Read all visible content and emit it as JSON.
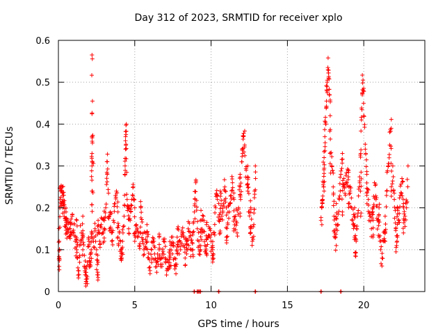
{
  "chart_data": {
    "type": "scatter",
    "title": "Day 312 of 2023, SRMTID for receiver xplo",
    "xlabel": "GPS time / hours",
    "ylabel": "SRMTID / TECUs",
    "xlim": [
      0,
      24
    ],
    "ylim": [
      0,
      0.6
    ],
    "x_ticks": [
      0,
      5,
      10,
      15,
      20
    ],
    "y_ticks": [
      0,
      0.1,
      0.2,
      0.3,
      0.4,
      0.5,
      0.6
    ],
    "x_tick_labels": [
      "0",
      "5",
      "10",
      "15",
      "20"
    ],
    "y_tick_labels": [
      "0",
      "0.1",
      "0.2",
      "0.3",
      "0.4",
      "0.5",
      "0.6"
    ],
    "grid": true,
    "marker": "+",
    "marker_color": "#ff0000",
    "series": [
      {
        "name": "SRMTID",
        "points": [
          [
            0.05,
            0.06
          ],
          [
            0.05,
            0.08
          ],
          [
            0.05,
            0.12
          ],
          [
            0.1,
            0.22
          ],
          [
            0.15,
            0.24
          ],
          [
            0.2,
            0.21
          ],
          [
            0.25,
            0.25
          ],
          [
            0.3,
            0.2
          ],
          [
            0.35,
            0.23
          ],
          [
            0.4,
            0.19
          ],
          [
            0.45,
            0.17
          ],
          [
            0.5,
            0.16
          ],
          [
            0.55,
            0.14
          ],
          [
            0.6,
            0.15
          ],
          [
            0.7,
            0.13
          ],
          [
            0.8,
            0.16
          ],
          [
            0.9,
            0.18
          ],
          [
            1.0,
            0.14
          ],
          [
            1.1,
            0.12
          ],
          [
            1.2,
            0.1
          ],
          [
            1.25,
            0.08
          ],
          [
            1.3,
            0.05
          ],
          [
            1.4,
            0.11
          ],
          [
            1.5,
            0.14
          ],
          [
            1.6,
            0.1
          ],
          [
            1.7,
            0.06
          ],
          [
            1.75,
            0.04
          ],
          [
            1.8,
            0.013
          ],
          [
            1.85,
            0.03
          ],
          [
            1.9,
            0.07
          ],
          [
            2.0,
            0.12
          ],
          [
            2.05,
            0.08
          ],
          [
            2.1,
            0.06
          ],
          [
            2.15,
            0.1
          ],
          [
            2.2,
            0.14
          ],
          [
            2.2,
            0.24
          ],
          [
            2.2,
            0.3
          ],
          [
            2.2,
            0.33
          ],
          [
            2.2,
            0.37
          ],
          [
            2.2,
            0.565
          ],
          [
            2.3,
            0.12
          ],
          [
            2.4,
            0.15
          ],
          [
            2.5,
            0.1
          ],
          [
            2.55,
            0.04
          ],
          [
            2.6,
            0.07
          ],
          [
            2.7,
            0.12
          ],
          [
            2.8,
            0.16
          ],
          [
            2.9,
            0.14
          ],
          [
            3.0,
            0.17
          ],
          [
            3.1,
            0.2
          ],
          [
            3.2,
            0.28
          ],
          [
            3.2,
            0.31
          ],
          [
            3.3,
            0.18
          ],
          [
            3.4,
            0.15
          ],
          [
            3.5,
            0.12
          ],
          [
            3.6,
            0.17
          ],
          [
            3.7,
            0.21
          ],
          [
            3.8,
            0.24
          ],
          [
            3.9,
            0.19
          ],
          [
            4.0,
            0.14
          ],
          [
            4.1,
            0.1
          ],
          [
            4.15,
            0.08
          ],
          [
            4.2,
            0.12
          ],
          [
            4.3,
            0.18
          ],
          [
            4.35,
            0.28
          ],
          [
            4.4,
            0.34
          ],
          [
            4.4,
            0.37
          ],
          [
            4.45,
            0.4
          ],
          [
            4.5,
            0.22
          ],
          [
            4.6,
            0.2
          ],
          [
            4.7,
            0.17
          ],
          [
            4.8,
            0.22
          ],
          [
            4.9,
            0.25
          ],
          [
            5.0,
            0.2
          ],
          [
            5.1,
            0.16
          ],
          [
            5.2,
            0.13
          ],
          [
            5.3,
            0.11
          ],
          [
            5.4,
            0.14
          ],
          [
            5.5,
            0.12
          ],
          [
            5.6,
            0.1
          ],
          [
            5.7,
            0.14
          ],
          [
            5.8,
            0.12
          ],
          [
            5.9,
            0.08
          ],
          [
            6.0,
            0.05
          ],
          [
            6.1,
            0.1
          ],
          [
            6.2,
            0.12
          ],
          [
            6.3,
            0.09
          ],
          [
            6.4,
            0.07
          ],
          [
            6.5,
            0.08
          ],
          [
            6.6,
            0.1
          ],
          [
            6.7,
            0.06
          ],
          [
            6.8,
            0.09
          ],
          [
            6.9,
            0.12
          ],
          [
            7.0,
            0.08
          ],
          [
            7.1,
            0.05
          ],
          [
            7.2,
            0.07
          ],
          [
            7.3,
            0.1
          ],
          [
            7.4,
            0.13
          ],
          [
            7.5,
            0.11
          ],
          [
            7.6,
            0.08
          ],
          [
            7.7,
            0.06
          ],
          [
            7.8,
            0.09
          ],
          [
            7.9,
            0.12
          ],
          [
            8.0,
            0.1
          ],
          [
            8.1,
            0.14
          ],
          [
            8.2,
            0.11
          ],
          [
            8.3,
            0.08
          ],
          [
            8.4,
            0.12
          ],
          [
            8.5,
            0.15
          ],
          [
            8.6,
            0.13
          ],
          [
            8.7,
            0.1
          ],
          [
            8.8,
            0.14
          ],
          [
            8.9,
            0.19
          ],
          [
            8.95,
            0.22
          ],
          [
            9.0,
            0.26
          ],
          [
            9.1,
            0.15
          ],
          [
            9.2,
            0.12
          ],
          [
            9.3,
            0.1
          ],
          [
            9.4,
            0.14
          ],
          [
            9.5,
            0.18
          ],
          [
            9.6,
            0.11
          ],
          [
            9.7,
            0.09
          ],
          [
            9.8,
            0.13
          ],
          [
            9.9,
            0.15
          ],
          [
            10.0,
            0.12
          ],
          [
            10.1,
            0.1
          ],
          [
            10.2,
            0.14
          ],
          [
            10.3,
            0.2
          ],
          [
            10.4,
            0.23
          ],
          [
            10.5,
            0.17
          ],
          [
            10.6,
            0.14
          ],
          [
            10.7,
            0.18
          ],
          [
            10.8,
            0.21
          ],
          [
            10.9,
            0.25
          ],
          [
            11.0,
            0.2
          ],
          [
            11.1,
            0.16
          ],
          [
            11.2,
            0.19
          ],
          [
            11.3,
            0.23
          ],
          [
            11.4,
            0.26
          ],
          [
            11.5,
            0.22
          ],
          [
            11.6,
            0.18
          ],
          [
            11.7,
            0.14
          ],
          [
            11.8,
            0.2
          ],
          [
            11.9,
            0.28
          ],
          [
            12.0,
            0.31
          ],
          [
            12.05,
            0.34
          ],
          [
            12.1,
            0.37
          ],
          [
            12.2,
            0.35
          ],
          [
            12.3,
            0.29
          ],
          [
            12.4,
            0.24
          ],
          [
            12.5,
            0.19
          ],
          [
            12.6,
            0.14
          ],
          [
            12.7,
            0.12
          ],
          [
            12.8,
            0.16
          ],
          [
            12.85,
            0.24
          ],
          [
            12.9,
            0.3
          ],
          [
            17.2,
            0.17
          ],
          [
            17.25,
            0.2
          ],
          [
            17.3,
            0.22
          ],
          [
            17.35,
            0.26
          ],
          [
            17.4,
            0.32
          ],
          [
            17.45,
            0.37
          ],
          [
            17.5,
            0.4
          ],
          [
            17.55,
            0.44
          ],
          [
            17.6,
            0.5
          ],
          [
            17.65,
            0.535
          ],
          [
            17.7,
            0.51
          ],
          [
            17.75,
            0.47
          ],
          [
            17.8,
            0.42
          ],
          [
            17.9,
            0.3
          ],
          [
            18.0,
            0.25
          ],
          [
            18.05,
            0.18
          ],
          [
            18.1,
            0.14
          ],
          [
            18.2,
            0.11
          ],
          [
            18.3,
            0.16
          ],
          [
            18.4,
            0.22
          ],
          [
            18.5,
            0.28
          ],
          [
            18.6,
            0.33
          ],
          [
            18.7,
            0.27
          ],
          [
            18.8,
            0.23
          ],
          [
            18.9,
            0.26
          ],
          [
            19.0,
            0.29
          ],
          [
            19.1,
            0.24
          ],
          [
            19.2,
            0.2
          ],
          [
            19.3,
            0.16
          ],
          [
            19.4,
            0.13
          ],
          [
            19.45,
            0.085
          ],
          [
            19.5,
            0.12
          ],
          [
            19.6,
            0.18
          ],
          [
            19.7,
            0.25
          ],
          [
            19.8,
            0.33
          ],
          [
            19.85,
            0.41
          ],
          [
            19.9,
            0.47
          ],
          [
            19.95,
            0.505
          ],
          [
            20.0,
            0.42
          ],
          [
            20.1,
            0.34
          ],
          [
            20.2,
            0.28
          ],
          [
            20.3,
            0.22
          ],
          [
            20.4,
            0.18
          ],
          [
            20.5,
            0.15
          ],
          [
            20.6,
            0.2
          ],
          [
            20.7,
            0.26
          ],
          [
            20.8,
            0.22
          ],
          [
            20.9,
            0.17
          ],
          [
            21.0,
            0.13
          ],
          [
            21.1,
            0.1
          ],
          [
            21.2,
            0.08
          ],
          [
            21.3,
            0.12
          ],
          [
            21.4,
            0.18
          ],
          [
            21.5,
            0.24
          ],
          [
            21.6,
            0.3
          ],
          [
            21.7,
            0.35
          ],
          [
            21.8,
            0.39
          ],
          [
            21.9,
            0.3
          ],
          [
            22.0,
            0.22
          ],
          [
            22.1,
            0.15
          ],
          [
            22.15,
            0.11
          ],
          [
            22.2,
            0.13
          ],
          [
            22.3,
            0.17
          ],
          [
            22.4,
            0.23
          ],
          [
            22.5,
            0.27
          ],
          [
            22.6,
            0.21
          ],
          [
            22.7,
            0.18
          ],
          [
            22.8,
            0.2
          ],
          [
            22.9,
            0.3
          ],
          [
            0.3,
            0.23
          ],
          [
            0.5,
            0.19
          ],
          [
            0.8,
            0.14
          ],
          [
            1.2,
            0.17
          ],
          [
            1.6,
            0.18
          ],
          [
            2.6,
            0.17
          ],
          [
            3.0,
            0.12
          ],
          [
            3.4,
            0.19
          ],
          [
            3.9,
            0.13
          ],
          [
            4.6,
            0.15
          ],
          [
            5.0,
            0.12
          ],
          [
            5.4,
            0.2
          ],
          [
            5.8,
            0.16
          ],
          [
            6.6,
            0.13
          ],
          [
            7.3,
            0.06
          ],
          [
            7.8,
            0.15
          ],
          [
            8.4,
            0.09
          ],
          [
            8.8,
            0.1
          ],
          [
            9.3,
            0.17
          ],
          [
            9.7,
            0.16
          ],
          [
            10.1,
            0.08
          ],
          [
            10.6,
            0.24
          ],
          [
            11.0,
            0.13
          ],
          [
            11.5,
            0.15
          ],
          [
            11.9,
            0.18
          ],
          [
            12.4,
            0.3
          ],
          [
            12.6,
            0.2
          ],
          [
            17.4,
            0.24
          ],
          [
            17.8,
            0.33
          ],
          [
            18.2,
            0.21
          ],
          [
            18.6,
            0.19
          ],
          [
            19.0,
            0.21
          ],
          [
            19.4,
            0.2
          ],
          [
            19.8,
            0.18
          ],
          [
            20.2,
            0.23
          ],
          [
            20.6,
            0.13
          ],
          [
            21.0,
            0.2
          ],
          [
            21.4,
            0.12
          ],
          [
            21.8,
            0.24
          ],
          [
            22.2,
            0.2
          ],
          [
            22.6,
            0.14
          ]
        ]
      }
    ],
    "baseline_zero_markers_hours": [
      8.9,
      9.1,
      9.2,
      9.3,
      10.5,
      12.9,
      17.2,
      18.5
    ]
  }
}
